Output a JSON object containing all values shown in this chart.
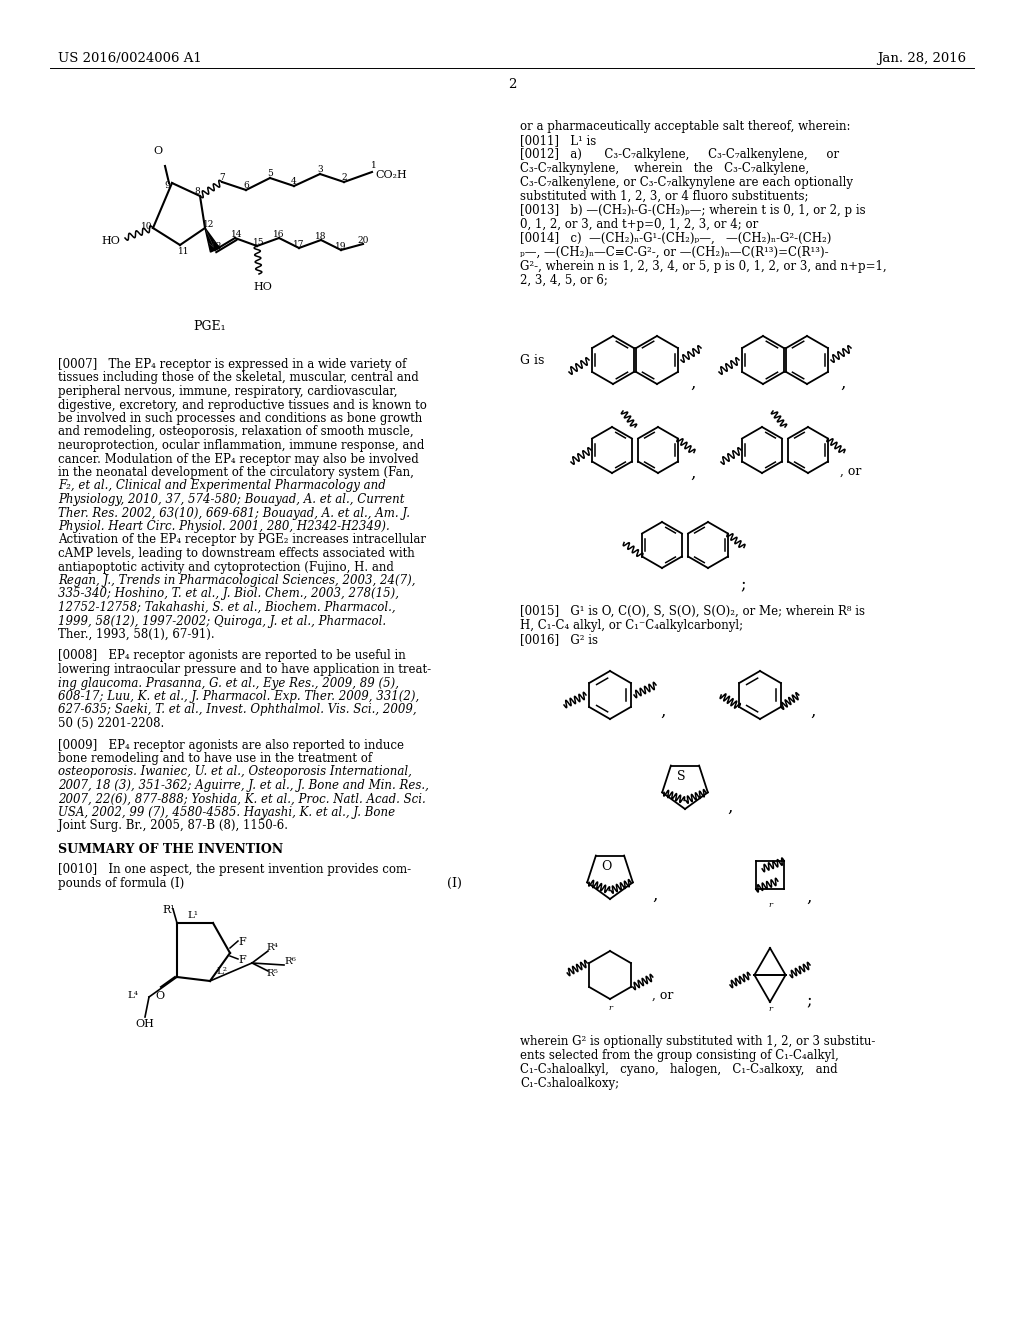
{
  "background_color": "#ffffff",
  "header_left": "US 2016/0024006 A1",
  "header_right": "Jan. 28, 2016",
  "page_number": "2",
  "figure_width": 10.24,
  "figure_height": 13.2,
  "dpi": 100
}
